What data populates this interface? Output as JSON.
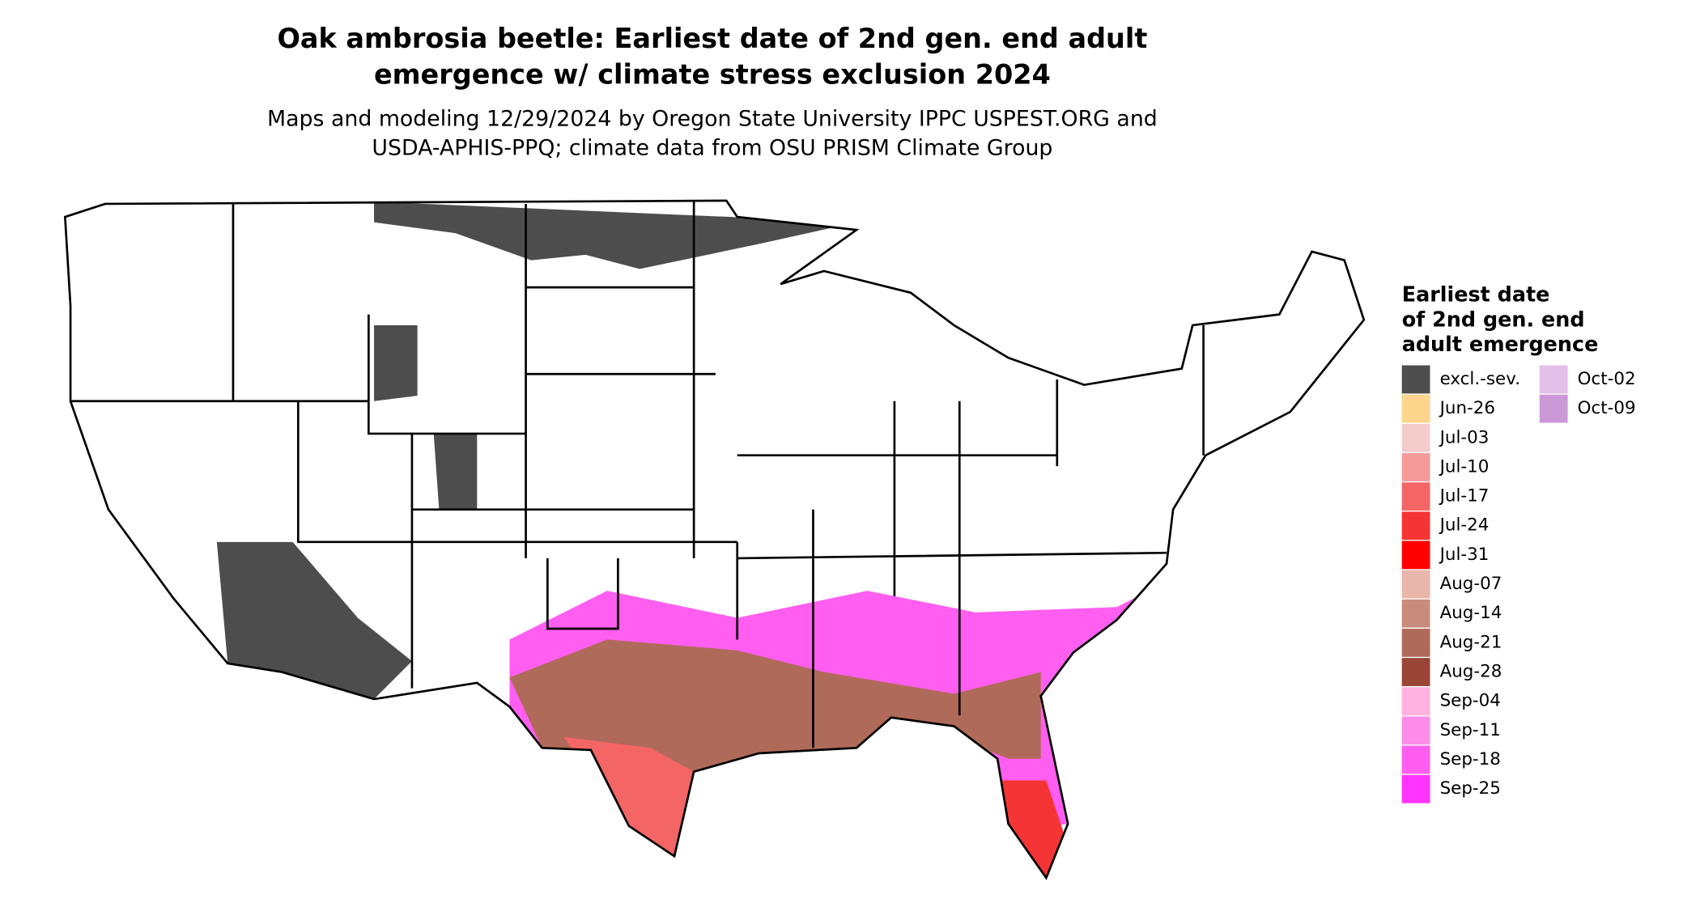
{
  "header": {
    "title": [
      "Oak ambrosia beetle: Earliest date of 2nd gen. end adult",
      "emergence w/ climate stress exclusion 2024"
    ],
    "subtitle": [
      "Maps and modeling 12/29/2024 by Oregon State University IPPC USPEST.ORG and",
      "USDA-APHIS-PPQ; climate data from OSU PRISM Climate Group"
    ]
  },
  "legend": {
    "title": [
      "Earliest date",
      "of 2nd gen. end",
      "adult emergence"
    ],
    "items": [
      {
        "label": "excl.-sev.",
        "color": "#4d4d4d"
      },
      {
        "label": "Jun-26",
        "color": "#fdd58c"
      },
      {
        "label": "Jul-03",
        "color": "#f5cccc"
      },
      {
        "label": "Jul-10",
        "color": "#f49a9a"
      },
      {
        "label": "Jul-17",
        "color": "#f46565"
      },
      {
        "label": "Jul-24",
        "color": "#f53535"
      },
      {
        "label": "Jul-31",
        "color": "#ff0000"
      },
      {
        "label": "Aug-07",
        "color": "#e8b6aa"
      },
      {
        "label": "Aug-14",
        "color": "#c98c7c"
      },
      {
        "label": "Aug-21",
        "color": "#b06a5a"
      },
      {
        "label": "Aug-28",
        "color": "#9a4535"
      },
      {
        "label": "Sep-04",
        "color": "#ffb2e0"
      },
      {
        "label": "Sep-11",
        "color": "#ff8ce8"
      },
      {
        "label": "Sep-18",
        "color": "#ff5ef0"
      },
      {
        "label": "Sep-25",
        "color": "#ff33ff"
      },
      {
        "label": "Oct-02",
        "color": "#e2bfe8"
      },
      {
        "label": "Oct-09",
        "color": "#cc99d8"
      }
    ]
  }
}
